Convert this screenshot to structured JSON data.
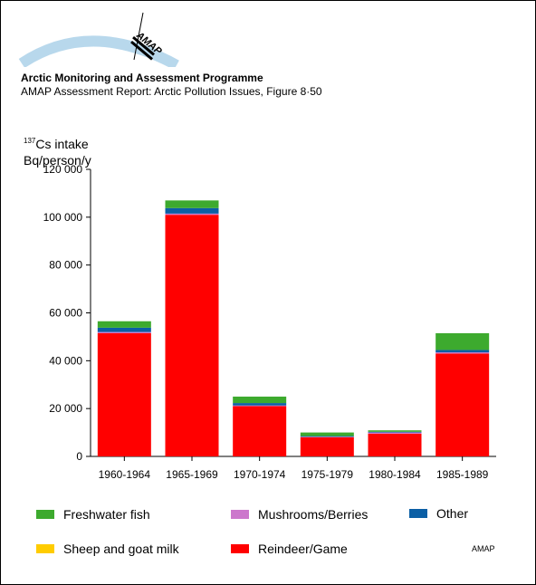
{
  "header": {
    "logo_text": "AMAP",
    "org": "Arctic Monitoring and Assessment Programme",
    "report": "AMAP Assessment Report: Arctic Pollution Issues, Figure 8·50"
  },
  "chart_data": {
    "type": "bar",
    "stacked": true,
    "ylabel_isotope": "137",
    "ylabel_line1": "Cs intake",
    "ylabel_line2": "Bq/person/y",
    "ylim": [
      0,
      120000
    ],
    "yticks": [
      0,
      20000,
      40000,
      60000,
      80000,
      100000,
      120000
    ],
    "ytick_labels": [
      "0",
      "20 000",
      "40 000",
      "60 000",
      "80 000",
      "100 000",
      "120 000"
    ],
    "categories": [
      "1960-1964",
      "1965-1969",
      "1970-1974",
      "1975-1979",
      "1980-1984",
      "1985-1989"
    ],
    "series": [
      {
        "name": "Reindeer/Game",
        "color": "#ff0000",
        "values": [
          51500,
          101000,
          21000,
          8000,
          9500,
          43000
        ]
      },
      {
        "name": "Sheep and goat milk",
        "color": "#ffcc00",
        "values": [
          0,
          0,
          0,
          0,
          0,
          0
        ]
      },
      {
        "name": "Mushrooms/Berries",
        "color": "#cc77cc",
        "values": [
          500,
          500,
          300,
          200,
          500,
          500
        ]
      },
      {
        "name": "Other",
        "color": "#0b5fa5",
        "values": [
          1800,
          2300,
          1000,
          300,
          300,
          1000
        ]
      },
      {
        "name": "Freshwater fish",
        "color": "#3daa2e",
        "values": [
          2700,
          3200,
          2700,
          1500,
          600,
          7000
        ]
      }
    ],
    "grid": false
  },
  "legend": [
    {
      "name": "Freshwater fish",
      "color": "#3daa2e"
    },
    {
      "name": "Mushrooms/Berries",
      "color": "#cc77cc"
    },
    {
      "name": "Other",
      "color": "#0b5fa5"
    },
    {
      "name": "Sheep and goat milk",
      "color": "#ffcc00"
    },
    {
      "name": "Reindeer/Game",
      "color": "#ff0000"
    }
  ],
  "credit": "AMAP"
}
